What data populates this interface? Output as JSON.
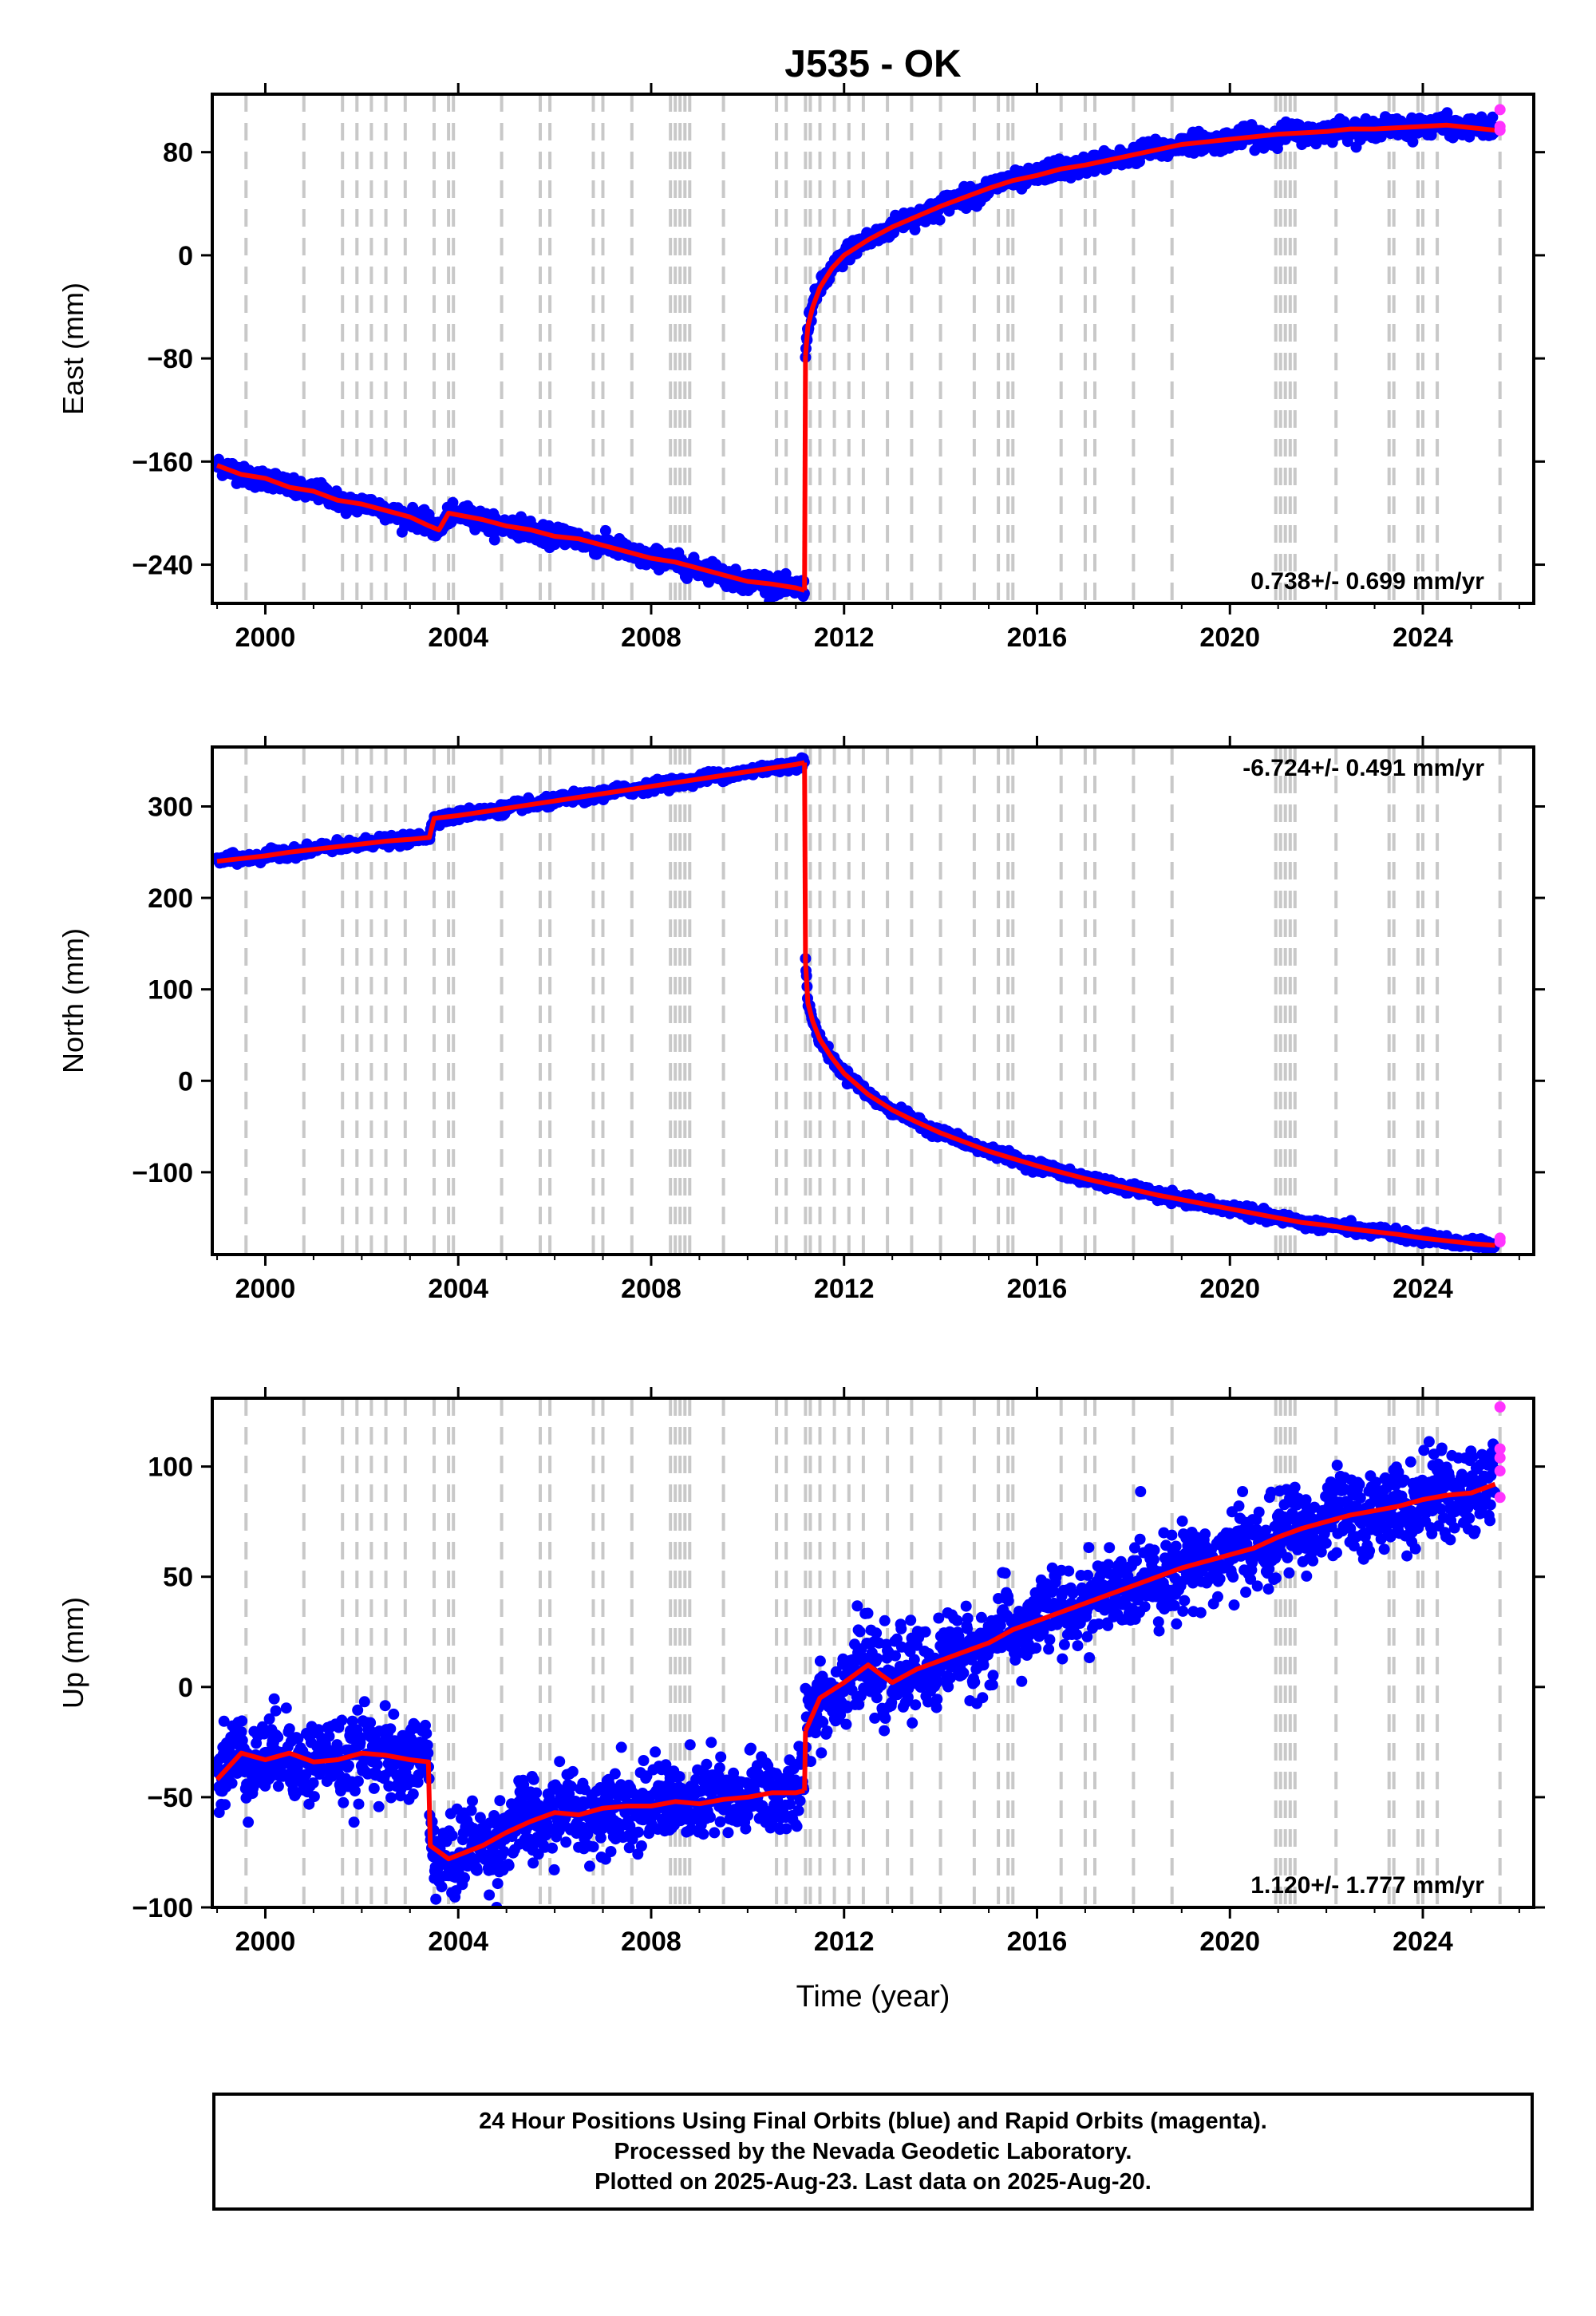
{
  "chart_data": [
    {
      "type": "scatter",
      "title": "J535 - OK",
      "ylabel": "East (mm)",
      "xlabel": "",
      "xlim": [
        1998.9,
        2026.3
      ],
      "ylim": [
        -270,
        125
      ],
      "xticks": [
        2000,
        2004,
        2008,
        2012,
        2016,
        2020,
        2024
      ],
      "yticks": [
        80,
        0,
        -80,
        -160,
        -240
      ],
      "rate_label": "0.738+/- 0.699 mm/yr",
      "rate_position": "bottom-right",
      "grid": false,
      "series": [
        {
          "color": "#0000ff",
          "values_description_only": false,
          "x": [
            1999.0,
            1999.5,
            2000.0,
            2000.5,
            2001.0,
            2001.5,
            2002.0,
            2002.5,
            2003.0,
            2003.4,
            2003.6,
            2003.8,
            2004.5,
            2005.0,
            2005.5,
            2006.0,
            2006.5,
            2007.0,
            2007.5,
            2008.0,
            2008.5,
            2009.0,
            2009.5,
            2010.0,
            2010.5,
            2011.0,
            2011.18
          ],
          "y": [
            -163,
            -170,
            -173,
            -180,
            -183,
            -190,
            -193,
            -198,
            -203,
            -210,
            -213,
            -200,
            -205,
            -210,
            -213,
            -218,
            -220,
            -225,
            -230,
            -235,
            -238,
            -243,
            -248,
            -253,
            -255,
            -258,
            -260
          ]
        },
        {
          "color": "#0000ff",
          "x": [
            2011.2,
            2011.25,
            2011.35,
            2011.5,
            2011.75,
            2012.0,
            2012.5,
            2013.0,
            2013.5,
            2014.0,
            2014.5,
            2015.0,
            2015.5,
            2016.0,
            2016.5,
            2017.0,
            2017.5,
            2018.0,
            2018.5,
            2019.0,
            2019.5,
            2020.0,
            2020.5,
            2021.0,
            2021.5,
            2022.0,
            2022.5,
            2023.0,
            2023.5,
            2024.0,
            2024.5,
            2025.0,
            2025.5
          ],
          "y": [
            -78,
            -55,
            -40,
            -25,
            -10,
            0,
            12,
            22,
            30,
            38,
            45,
            52,
            58,
            62,
            67,
            70,
            74,
            78,
            82,
            86,
            88,
            90,
            92,
            94,
            95,
            96,
            98,
            98,
            99,
            100,
            101,
            99,
            97
          ]
        }
      ],
      "rapid_points": [
        {
          "x": 2025.6,
          "y": 113
        },
        {
          "x": 2025.6,
          "y": 100
        },
        {
          "x": 2025.6,
          "y": 97
        }
      ]
    },
    {
      "type": "scatter",
      "title": "",
      "ylabel": "North (mm)",
      "xlabel": "",
      "xlim": [
        1998.9,
        2026.3
      ],
      "ylim": [
        -190,
        365
      ],
      "xticks": [
        2000,
        2004,
        2008,
        2012,
        2016,
        2020,
        2024
      ],
      "yticks": [
        300,
        200,
        100,
        0,
        -100
      ],
      "rate_label": "-6.724+/- 0.491 mm/yr",
      "rate_position": "top-right",
      "grid": false,
      "series": [
        {
          "color": "#0000ff",
          "x": [
            1999.0,
            1999.5,
            2000.0,
            2000.5,
            2001.0,
            2001.5,
            2002.0,
            2002.5,
            2003.0,
            2003.4,
            2003.5,
            2004.0,
            2004.5,
            2005.0,
            2005.5,
            2006.0,
            2006.5,
            2007.0,
            2007.5,
            2008.0,
            2008.5,
            2009.0,
            2009.5,
            2010.0,
            2010.5,
            2011.0,
            2011.18
          ],
          "y": [
            240,
            243,
            246,
            250,
            253,
            256,
            259,
            262,
            264,
            266,
            287,
            290,
            294,
            298,
            302,
            306,
            310,
            314,
            318,
            322,
            326,
            330,
            334,
            338,
            342,
            346,
            348
          ]
        },
        {
          "color": "#0000ff",
          "x": [
            2011.2,
            2011.25,
            2011.35,
            2011.5,
            2011.75,
            2012.0,
            2012.5,
            2013.0,
            2013.5,
            2014.0,
            2014.5,
            2015.0,
            2015.5,
            2016.0,
            2016.5,
            2017.0,
            2017.5,
            2018.0,
            2018.5,
            2019.0,
            2019.5,
            2020.0,
            2020.5,
            2021.0,
            2021.5,
            2022.0,
            2022.5,
            2023.0,
            2023.5,
            2024.0,
            2024.5,
            2025.0,
            2025.5
          ],
          "y": [
            130,
            85,
            65,
            45,
            25,
            8,
            -15,
            -32,
            -45,
            -57,
            -67,
            -77,
            -85,
            -93,
            -100,
            -107,
            -113,
            -119,
            -125,
            -130,
            -135,
            -140,
            -145,
            -150,
            -155,
            -158,
            -162,
            -165,
            -168,
            -172,
            -175,
            -178,
            -180
          ]
        }
      ],
      "rapid_points": [
        {
          "x": 2025.6,
          "y": -172
        },
        {
          "x": 2025.6,
          "y": -176
        }
      ]
    },
    {
      "type": "scatter",
      "title": "",
      "ylabel": "Up (mm)",
      "xlabel": "Time (year)",
      "xlim": [
        1998.9,
        2026.3
      ],
      "ylim": [
        -100,
        131
      ],
      "xticks": [
        2000,
        2004,
        2008,
        2012,
        2016,
        2020,
        2024
      ],
      "yticks": [
        100,
        50,
        0,
        -50,
        -100
      ],
      "rate_label": "1.120+/- 1.777 mm/yr",
      "rate_position": "bottom-right",
      "grid": false,
      "series": [
        {
          "color": "#0000ff",
          "x": [
            1999.0,
            1999.5,
            2000.0,
            2000.5,
            2001.0,
            2001.5,
            2002.0,
            2002.5,
            2003.0,
            2003.38,
            2003.42,
            2003.8,
            2004.5,
            2005.0,
            2005.5,
            2006.0,
            2006.5,
            2007.0,
            2007.5,
            2008.0,
            2008.5,
            2009.0,
            2009.5,
            2010.0,
            2010.5,
            2011.0,
            2011.18
          ],
          "y": [
            -42,
            -30,
            -33,
            -30,
            -34,
            -33,
            -30,
            -31,
            -33,
            -34,
            -72,
            -78,
            -72,
            -66,
            -61,
            -57,
            -58,
            -55,
            -54,
            -54,
            -52,
            -53,
            -51,
            -50,
            -48,
            -48,
            -47
          ]
        },
        {
          "color": "#0000ff",
          "x": [
            2011.2,
            2011.5,
            2012.0,
            2012.5,
            2012.8,
            2013.0,
            2013.5,
            2014.0,
            2014.5,
            2015.0,
            2015.5,
            2016.0,
            2016.5,
            2017.0,
            2017.5,
            2018.0,
            2018.5,
            2019.0,
            2019.5,
            2020.0,
            2020.5,
            2021.0,
            2021.5,
            2022.0,
            2022.5,
            2023.0,
            2023.5,
            2024.0,
            2024.5,
            2025.0,
            2025.5
          ],
          "y": [
            -20,
            -5,
            2,
            10,
            5,
            2,
            8,
            12,
            16,
            20,
            26,
            30,
            34,
            38,
            42,
            46,
            50,
            54,
            57,
            60,
            63,
            68,
            72,
            75,
            78,
            80,
            82,
            85,
            87,
            88,
            92
          ]
        }
      ],
      "rapid_points": [
        {
          "x": 2025.6,
          "y": 127
        },
        {
          "x": 2025.6,
          "y": 108
        },
        {
          "x": 2025.6,
          "y": 104
        },
        {
          "x": 2025.6,
          "y": 98
        },
        {
          "x": 2025.6,
          "y": 86
        }
      ]
    }
  ],
  "event_lines_years": [
    1999.6,
    2000.8,
    2001.6,
    2001.9,
    2002.2,
    2002.5,
    2002.9,
    2003.5,
    2003.8,
    2003.9,
    2004.9,
    2005.7,
    2005.9,
    2006.8,
    2007.0,
    2007.6,
    2008.4,
    2008.5,
    2008.6,
    2008.7,
    2008.8,
    2009.5,
    2010.6,
    2010.8,
    2011.2,
    2011.3,
    2011.5,
    2011.8,
    2012.1,
    2012.4,
    2012.9,
    2013.4,
    2014.0,
    2014.7,
    2015.2,
    2015.4,
    2015.5,
    2016.5,
    2017.0,
    2017.2,
    2018.0,
    2018.8,
    2020.95,
    2021.05,
    2021.15,
    2021.25,
    2021.35,
    2022.2,
    2023.3,
    2023.4,
    2023.9,
    2024.0,
    2024.3,
    2025.6
  ],
  "colors": {
    "final": "#0000ff",
    "rapid": "#ff33ff",
    "model": "#ff0000",
    "event_line": "#c8c8c8"
  },
  "footer": {
    "line1": "24 Hour Positions Using Final Orbits (blue) and Rapid Orbits (magenta).",
    "line2": "Processed by the Nevada Geodetic Laboratory.",
    "line3": "Plotted on 2025-Aug-23. Last data on 2025-Aug-20."
  }
}
